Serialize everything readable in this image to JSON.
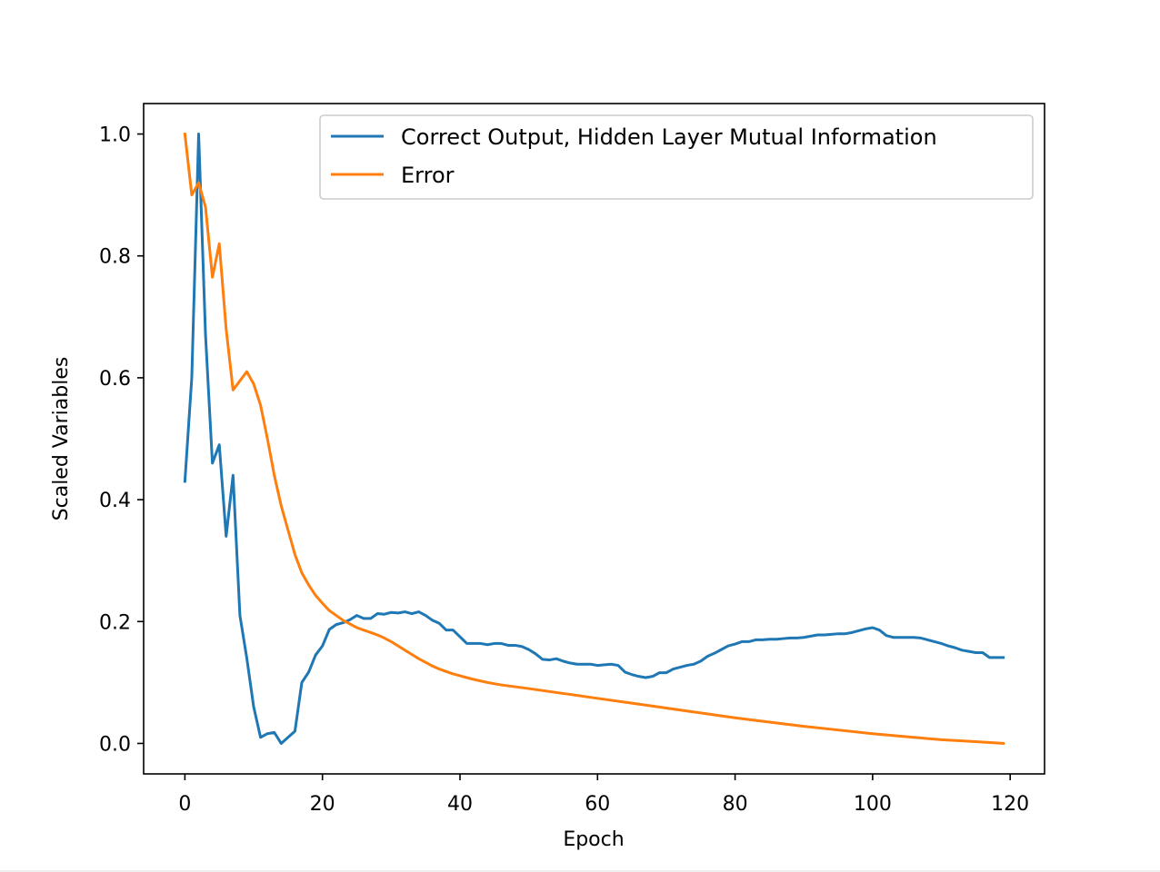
{
  "chart_data": {
    "type": "line",
    "title": "",
    "xlabel": "Epoch",
    "ylabel": "Scaled Variables",
    "xlim": [
      -6,
      125
    ],
    "ylim": [
      -0.05,
      1.05
    ],
    "xticks": [
      0,
      20,
      40,
      60,
      80,
      100,
      120
    ],
    "xtick_labels": [
      "0",
      "20",
      "40",
      "60",
      "80",
      "100",
      "120"
    ],
    "yticks": [
      0.0,
      0.2,
      0.4,
      0.6,
      0.8,
      1.0
    ],
    "ytick_labels": [
      "0.0",
      "0.2",
      "0.4",
      "0.6",
      "0.8",
      "1.0"
    ],
    "grid": false,
    "legend_position": "top-right",
    "series": [
      {
        "name": "Correct Output, Hidden Layer Mutual Information",
        "color": "#1f77b4",
        "points": [
          [
            0,
            0.43
          ],
          [
            1,
            0.6
          ],
          [
            2,
            1.0
          ],
          [
            3,
            0.67
          ],
          [
            4,
            0.46
          ],
          [
            5,
            0.49
          ],
          [
            6,
            0.34
          ],
          [
            7,
            0.44
          ],
          [
            8,
            0.21
          ],
          [
            9,
            0.14
          ],
          [
            10,
            0.06
          ],
          [
            11,
            0.01
          ],
          [
            12,
            0.016
          ],
          [
            13,
            0.018
          ],
          [
            14,
            0.0
          ],
          [
            15,
            0.01
          ],
          [
            16,
            0.02
          ],
          [
            17,
            0.1
          ],
          [
            18,
            0.117
          ],
          [
            19,
            0.145
          ],
          [
            20,
            0.16
          ],
          [
            21,
            0.187
          ],
          [
            22,
            0.195
          ],
          [
            23,
            0.198
          ],
          [
            24,
            0.203
          ],
          [
            25,
            0.21
          ],
          [
            26,
            0.205
          ],
          [
            27,
            0.205
          ],
          [
            28,
            0.213
          ],
          [
            29,
            0.212
          ],
          [
            30,
            0.215
          ],
          [
            31,
            0.214
          ],
          [
            32,
            0.216
          ],
          [
            33,
            0.213
          ],
          [
            34,
            0.216
          ],
          [
            35,
            0.21
          ],
          [
            36,
            0.202
          ],
          [
            37,
            0.197
          ],
          [
            38,
            0.186
          ],
          [
            39,
            0.186
          ],
          [
            40,
            0.175
          ],
          [
            41,
            0.164
          ],
          [
            42,
            0.164
          ],
          [
            43,
            0.164
          ],
          [
            44,
            0.162
          ],
          [
            45,
            0.164
          ],
          [
            46,
            0.164
          ],
          [
            47,
            0.161
          ],
          [
            48,
            0.161
          ],
          [
            49,
            0.159
          ],
          [
            50,
            0.154
          ],
          [
            51,
            0.147
          ],
          [
            52,
            0.138
          ],
          [
            53,
            0.137
          ],
          [
            54,
            0.139
          ],
          [
            55,
            0.135
          ],
          [
            56,
            0.132
          ],
          [
            57,
            0.13
          ],
          [
            58,
            0.13
          ],
          [
            59,
            0.13
          ],
          [
            60,
            0.128
          ],
          [
            61,
            0.129
          ],
          [
            62,
            0.13
          ],
          [
            63,
            0.128
          ],
          [
            64,
            0.117
          ],
          [
            65,
            0.113
          ],
          [
            66,
            0.11
          ],
          [
            67,
            0.108
          ],
          [
            68,
            0.11
          ],
          [
            69,
            0.116
          ],
          [
            70,
            0.116
          ],
          [
            71,
            0.122
          ],
          [
            72,
            0.125
          ],
          [
            73,
            0.128
          ],
          [
            74,
            0.13
          ],
          [
            75,
            0.135
          ],
          [
            76,
            0.143
          ],
          [
            77,
            0.148
          ],
          [
            78,
            0.154
          ],
          [
            79,
            0.16
          ],
          [
            80,
            0.163
          ],
          [
            81,
            0.167
          ],
          [
            82,
            0.167
          ],
          [
            83,
            0.17
          ],
          [
            84,
            0.17
          ],
          [
            85,
            0.171
          ],
          [
            86,
            0.171
          ],
          [
            87,
            0.172
          ],
          [
            88,
            0.173
          ],
          [
            89,
            0.173
          ],
          [
            90,
            0.174
          ],
          [
            91,
            0.176
          ],
          [
            92,
            0.178
          ],
          [
            93,
            0.178
          ],
          [
            94,
            0.179
          ],
          [
            95,
            0.18
          ],
          [
            96,
            0.18
          ],
          [
            97,
            0.182
          ],
          [
            98,
            0.185
          ],
          [
            99,
            0.188
          ],
          [
            100,
            0.19
          ],
          [
            101,
            0.186
          ],
          [
            102,
            0.177
          ],
          [
            103,
            0.174
          ],
          [
            104,
            0.174
          ],
          [
            105,
            0.174
          ],
          [
            106,
            0.174
          ],
          [
            107,
            0.173
          ],
          [
            108,
            0.17
          ],
          [
            109,
            0.167
          ],
          [
            110,
            0.164
          ],
          [
            111,
            0.16
          ],
          [
            112,
            0.157
          ],
          [
            113,
            0.153
          ],
          [
            114,
            0.151
          ],
          [
            115,
            0.149
          ],
          [
            116,
            0.149
          ],
          [
            117,
            0.141
          ],
          [
            118,
            0.141
          ],
          [
            119,
            0.141
          ]
        ]
      },
      {
        "name": "Error",
        "color": "#ff7f0e",
        "points": [
          [
            0,
            1.0
          ],
          [
            1,
            0.9
          ],
          [
            2,
            0.92
          ],
          [
            3,
            0.88
          ],
          [
            4,
            0.765
          ],
          [
            5,
            0.82
          ],
          [
            6,
            0.68
          ],
          [
            7,
            0.58
          ],
          [
            8,
            0.595
          ],
          [
            9,
            0.61
          ],
          [
            10,
            0.59
          ],
          [
            11,
            0.555
          ],
          [
            12,
            0.5
          ],
          [
            13,
            0.44
          ],
          [
            14,
            0.39
          ],
          [
            15,
            0.35
          ],
          [
            16,
            0.31
          ],
          [
            17,
            0.28
          ],
          [
            18,
            0.26
          ],
          [
            19,
            0.243
          ],
          [
            20,
            0.23
          ],
          [
            21,
            0.218
          ],
          [
            22,
            0.21
          ],
          [
            23,
            0.202
          ],
          [
            24,
            0.196
          ],
          [
            25,
            0.19
          ],
          [
            26,
            0.186
          ],
          [
            27,
            0.182
          ],
          [
            28,
            0.178
          ],
          [
            29,
            0.173
          ],
          [
            30,
            0.167
          ],
          [
            31,
            0.16
          ],
          [
            32,
            0.153
          ],
          [
            33,
            0.146
          ],
          [
            34,
            0.139
          ],
          [
            35,
            0.133
          ],
          [
            36,
            0.127
          ],
          [
            37,
            0.122
          ],
          [
            38,
            0.118
          ],
          [
            39,
            0.114
          ],
          [
            40,
            0.111
          ],
          [
            42,
            0.105
          ],
          [
            44,
            0.1
          ],
          [
            46,
            0.096
          ],
          [
            48,
            0.093
          ],
          [
            50,
            0.09
          ],
          [
            55,
            0.082
          ],
          [
            60,
            0.074
          ],
          [
            65,
            0.066
          ],
          [
            70,
            0.058
          ],
          [
            75,
            0.05
          ],
          [
            80,
            0.042
          ],
          [
            85,
            0.035
          ],
          [
            90,
            0.028
          ],
          [
            95,
            0.022
          ],
          [
            100,
            0.016
          ],
          [
            105,
            0.011
          ],
          [
            110,
            0.006
          ],
          [
            115,
            0.003
          ],
          [
            119,
            0.0
          ]
        ]
      }
    ]
  }
}
